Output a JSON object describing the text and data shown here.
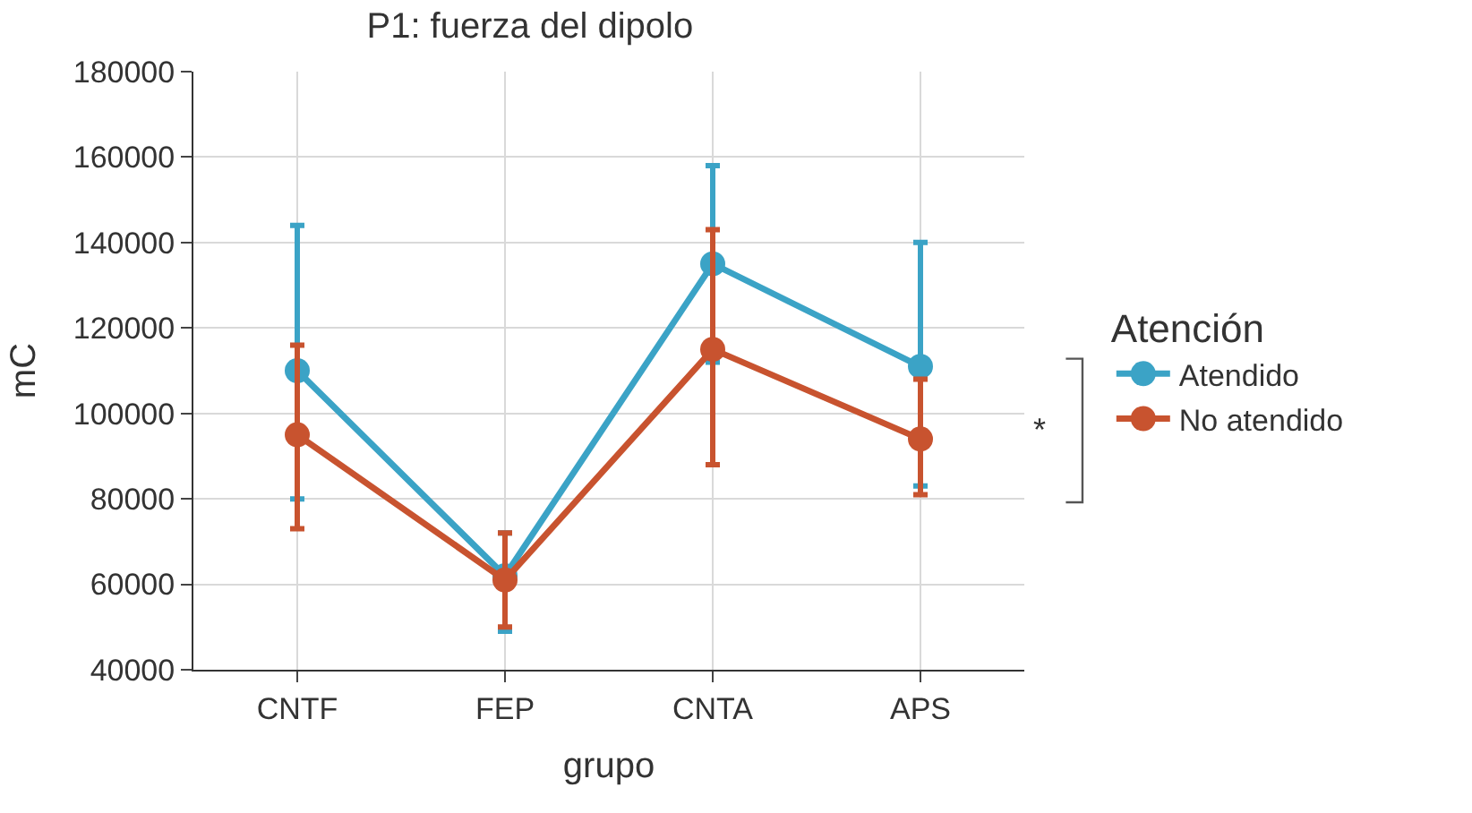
{
  "chart_data": {
    "type": "line",
    "title": "P1: fuerza del dipolo",
    "xlabel": "grupo",
    "ylabel": "mC",
    "legend_title": "Atención",
    "categories": [
      "CNTF",
      "FEP",
      "CNTA",
      "APS"
    ],
    "series": [
      {
        "name": "Atendido",
        "color": "#3ba3c6",
        "values": [
          110000,
          62000,
          135000,
          111000
        ],
        "errors": [
          [
            80000,
            144000
          ],
          [
            49000,
            72000
          ],
          [
            112000,
            158000
          ],
          [
            83000,
            140000
          ]
        ]
      },
      {
        "name": "No atendido",
        "color": "#c8532f",
        "values": [
          95000,
          61000,
          115000,
          94000
        ],
        "errors": [
          [
            73000,
            116000
          ],
          [
            50000,
            72000
          ],
          [
            88000,
            143000
          ],
          [
            81000,
            108000
          ]
        ]
      }
    ],
    "ylim": [
      40000,
      180000
    ],
    "yticks": [
      40000,
      60000,
      80000,
      100000,
      120000,
      140000,
      160000,
      180000
    ],
    "grid": true,
    "legend": "right",
    "marker": "circle",
    "line_style": "solid",
    "annotations": [
      "*"
    ]
  }
}
